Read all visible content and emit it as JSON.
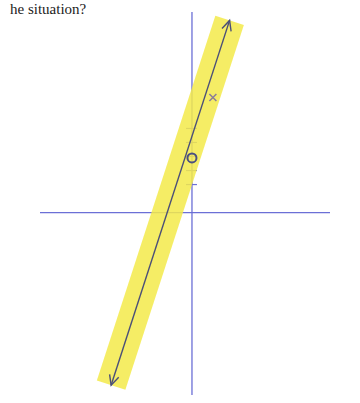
{
  "chart_data": {
    "type": "line",
    "title": "he situation?",
    "xlim": [
      -10.9,
      9.9
    ],
    "ylim": [
      -13,
      14.3
    ],
    "yticks": [
      2,
      3,
      4,
      5,
      6
    ],
    "tick_labels": false,
    "grid": false,
    "series": [
      {
        "type": "line",
        "color": "#4b4f78",
        "line_style": "solid",
        "marker": "arrow",
        "x": [
          -5.8,
          2.7
        ],
        "values": [
          -12.3,
          13.7
        ]
      },
      {
        "type": "scatter",
        "color": "#4b5080",
        "marker": "circle",
        "x": [
          0
        ],
        "values": [
          3.9
        ]
      },
      {
        "type": "scatter",
        "color": "#8a7d9a",
        "marker": "x",
        "x": [
          1.5
        ],
        "values": [
          8.2
        ]
      }
    ]
  }
}
